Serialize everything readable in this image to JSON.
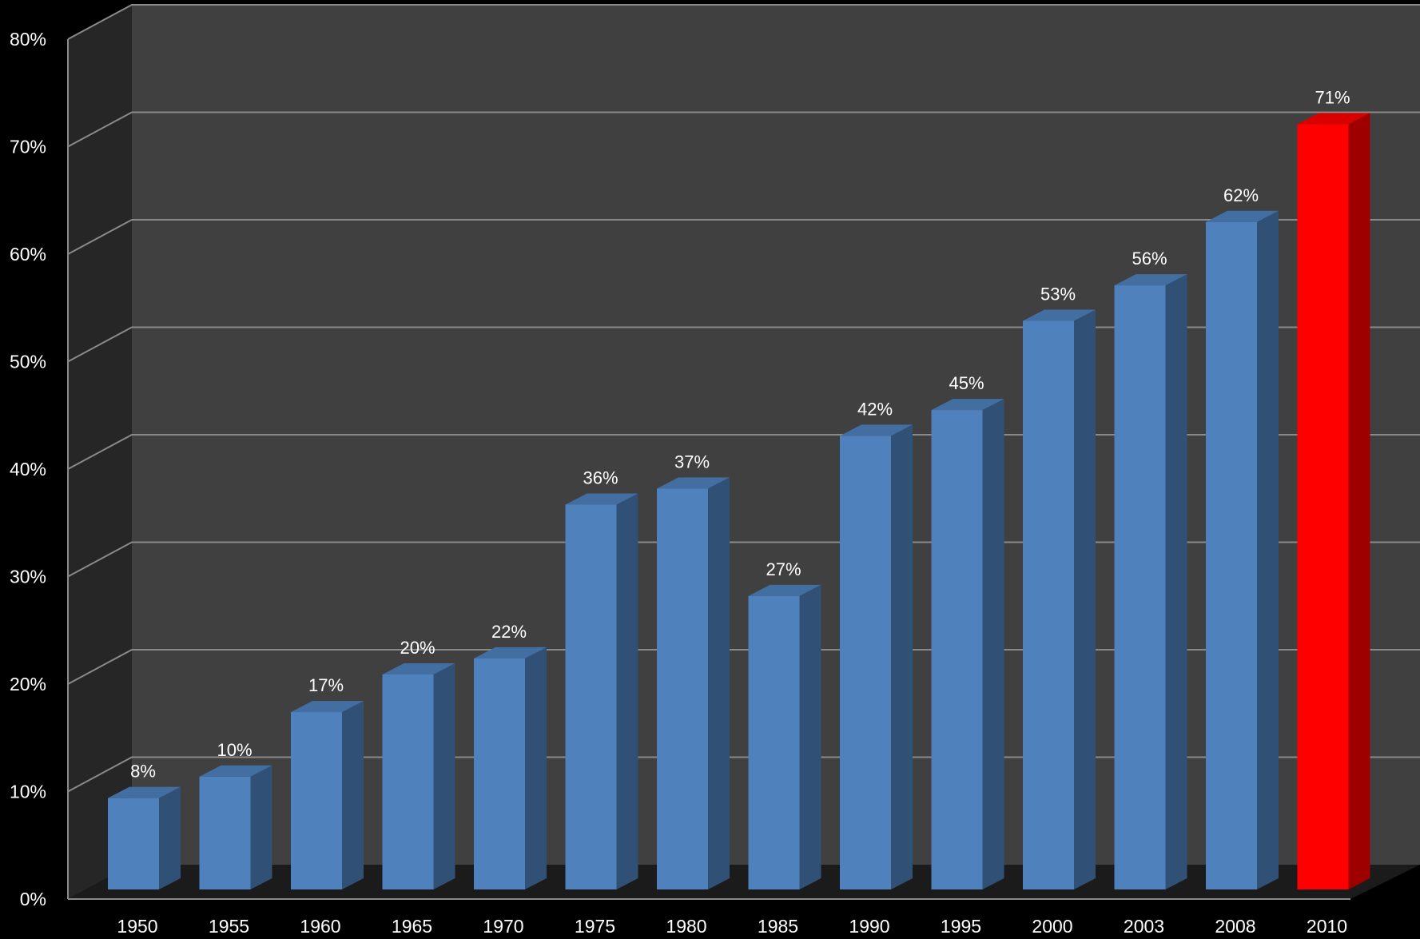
{
  "chart_data": {
    "type": "bar",
    "categories": [
      "1950",
      "1955",
      "1960",
      "1965",
      "1970",
      "1975",
      "1980",
      "1985",
      "1990",
      "1995",
      "2000",
      "2003",
      "2008",
      "2010"
    ],
    "values": [
      8.5,
      10.5,
      16.5,
      20,
      21.5,
      35.8,
      37.3,
      27.3,
      42.2,
      44.6,
      52.9,
      56.2,
      62.1,
      71.2
    ],
    "data_labels": [
      "8%",
      "10%",
      "17%",
      "20%",
      "22%",
      "36%",
      "37%",
      "27%",
      "42%",
      "45%",
      "53%",
      "56%",
      "62%",
      "71%"
    ],
    "y_ticks": [
      0,
      10,
      20,
      30,
      40,
      50,
      60,
      70,
      80
    ],
    "y_tick_labels": [
      "0%",
      "10%",
      "20%",
      "30%",
      "40%",
      "50%",
      "60%",
      "70%",
      "80%"
    ],
    "ylim": [
      0,
      80
    ],
    "title": "",
    "xlabel": "",
    "ylabel": "",
    "grid": true,
    "legend": "none",
    "style": "3d-column",
    "colors": {
      "background": "#000000",
      "back_wall": "#404040",
      "side_wall": "#262626",
      "floor": "#1b1b1b",
      "gridline": "#8a8a8a",
      "bar_default": "#4f81bd",
      "bar_highlight": "#ff0000"
    },
    "highlight_category": "2010"
  }
}
